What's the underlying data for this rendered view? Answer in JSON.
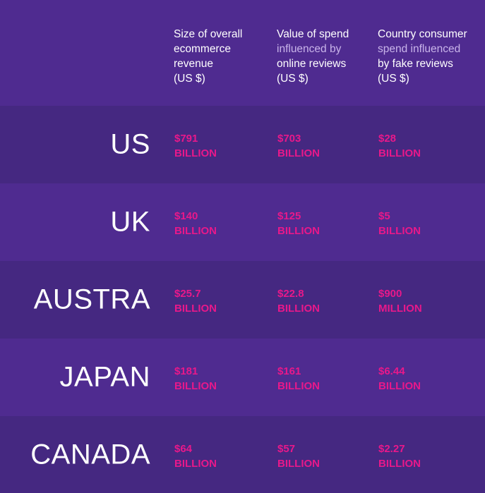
{
  "columns": [
    {
      "lines": [
        {
          "text": "Size of overall",
          "style": "bright"
        },
        {
          "text": "ecommerce",
          "style": "bright"
        },
        {
          "text": "revenue",
          "style": "bright"
        },
        {
          "text": "(US $)",
          "style": "bright"
        }
      ]
    },
    {
      "lines": [
        {
          "text": "Value of spend",
          "style": "bright"
        },
        {
          "text": "influenced by",
          "style": "muted"
        },
        {
          "text": "online reviews",
          "style": "bright"
        },
        {
          "text": "(US $)",
          "style": "bright"
        }
      ]
    },
    {
      "lines": [
        {
          "text": "Country consumer",
          "style": "bright"
        },
        {
          "text": "spend influenced",
          "style": "muted"
        },
        {
          "text": "by fake reviews",
          "style": "bright"
        },
        {
          "text": "(US $)",
          "style": "bright"
        }
      ]
    }
  ],
  "rows": [
    {
      "country": "US",
      "values": [
        [
          "$791",
          "BILLION"
        ],
        [
          "$703",
          "BILLION"
        ],
        [
          "$28",
          "BILLION"
        ]
      ]
    },
    {
      "country": "UK",
      "values": [
        [
          "$140",
          "BILLION"
        ],
        [
          "$125",
          "BILLION"
        ],
        [
          "$5",
          "BILLION"
        ]
      ]
    },
    {
      "country": "AUSTRA",
      "values": [
        [
          "$25.7",
          "BILLION"
        ],
        [
          "$22.8",
          "BILLION"
        ],
        [
          "$900",
          "MILLION"
        ]
      ]
    },
    {
      "country": "JAPAN",
      "values": [
        [
          "$181",
          "BILLION"
        ],
        [
          "$161",
          "BILLION"
        ],
        [
          "$6.44",
          "BILLION"
        ]
      ]
    },
    {
      "country": "CANADA",
      "values": [
        [
          "$64",
          "BILLION"
        ],
        [
          "$57",
          "BILLION"
        ],
        [
          "$2.27",
          "BILLION"
        ]
      ]
    }
  ],
  "colors": {
    "background": "#4f2b90",
    "row_dark": "#452881",
    "value_pink": "#e8188a",
    "header_muted": "#c9b4ea"
  }
}
